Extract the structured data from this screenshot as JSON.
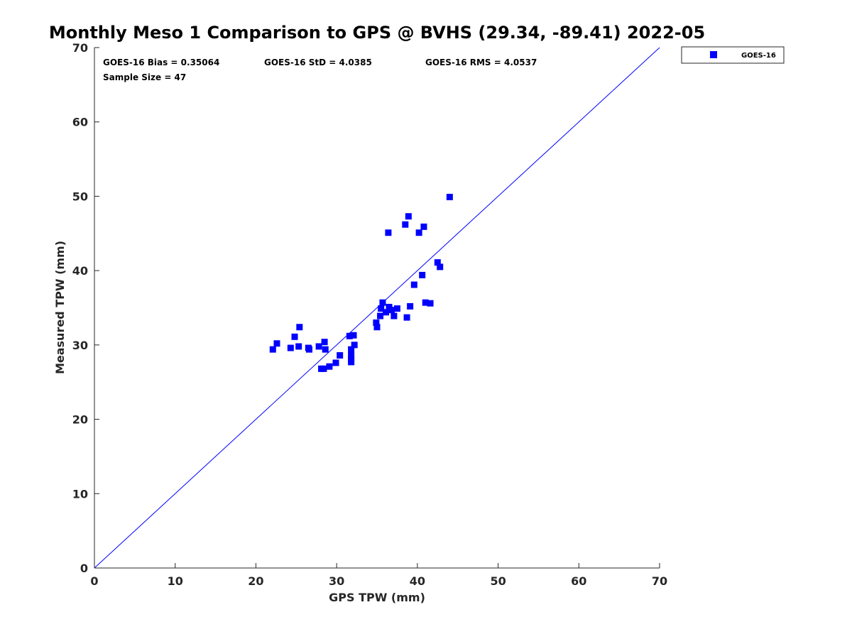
{
  "chart_data": {
    "type": "scatter",
    "title": "Monthly Meso 1 Comparison to GPS @ BVHS (29.34, -89.41) 2022-05",
    "xlabel": "GPS TPW (mm)",
    "ylabel": "Measured TPW (mm)",
    "xlim": [
      0,
      70
    ],
    "ylim": [
      0,
      70
    ],
    "xticks": [
      "0",
      "10",
      "20",
      "30",
      "40",
      "50",
      "60",
      "70"
    ],
    "yticks": [
      "0",
      "10",
      "20",
      "30",
      "40",
      "50",
      "60",
      "70"
    ],
    "xtick_values": [
      0,
      10,
      20,
      30,
      40,
      50,
      60,
      70
    ],
    "ytick_values": [
      0,
      10,
      20,
      30,
      40,
      50,
      60,
      70
    ],
    "grid": false,
    "legend_position": "top-right outside",
    "reference_line": {
      "x": [
        0,
        70
      ],
      "y": [
        0,
        70
      ],
      "color": "#0000ff"
    },
    "stats": {
      "bias": "GOES-16 Bias = 0.35064",
      "std": "GOES-16 StD = 4.0385",
      "rms": "GOES-16 RMS = 4.0537",
      "sample_size": "Sample Size = 47"
    },
    "series": [
      {
        "name": "GOES-16",
        "color": "#0000ff",
        "marker": "square",
        "points": [
          [
            22.1,
            29.4
          ],
          [
            22.6,
            30.2
          ],
          [
            24.3,
            29.6
          ],
          [
            24.8,
            31.1
          ],
          [
            25.3,
            29.8
          ],
          [
            25.4,
            32.4
          ],
          [
            26.5,
            29.6
          ],
          [
            26.6,
            29.4
          ],
          [
            27.8,
            29.8
          ],
          [
            28.1,
            26.8
          ],
          [
            28.4,
            26.8
          ],
          [
            28.5,
            30.4
          ],
          [
            28.6,
            29.4
          ],
          [
            29.1,
            27.1
          ],
          [
            29.9,
            27.6
          ],
          [
            30.4,
            28.6
          ],
          [
            31.6,
            31.2
          ],
          [
            31.8,
            29.4
          ],
          [
            31.8,
            28.6
          ],
          [
            31.8,
            28.1
          ],
          [
            31.8,
            27.7
          ],
          [
            32.1,
            31.3
          ],
          [
            32.2,
            30.0
          ],
          [
            34.9,
            33.0
          ],
          [
            35.0,
            32.4
          ],
          [
            35.4,
            33.9
          ],
          [
            35.5,
            34.9
          ],
          [
            35.7,
            35.7
          ],
          [
            36.1,
            34.4
          ],
          [
            36.4,
            45.1
          ],
          [
            36.5,
            35.1
          ],
          [
            36.8,
            34.7
          ],
          [
            37.1,
            33.9
          ],
          [
            37.5,
            34.9
          ],
          [
            38.5,
            46.2
          ],
          [
            38.7,
            33.7
          ],
          [
            38.9,
            47.3
          ],
          [
            39.1,
            35.2
          ],
          [
            39.6,
            38.1
          ],
          [
            40.2,
            45.1
          ],
          [
            40.6,
            39.4
          ],
          [
            40.8,
            45.9
          ],
          [
            41.0,
            35.7
          ],
          [
            41.6,
            35.6
          ],
          [
            42.5,
            41.1
          ],
          [
            42.8,
            40.5
          ],
          [
            44.0,
            49.9
          ]
        ]
      }
    ]
  }
}
